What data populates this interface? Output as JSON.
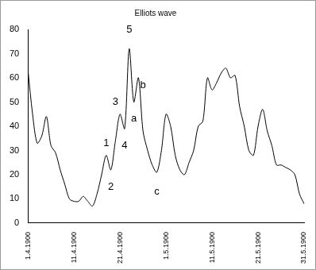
{
  "chart_data": {
    "type": "line",
    "title": "Elliots wave",
    "categories": [
      "1.4.1900",
      null,
      null,
      null,
      null,
      null,
      null,
      null,
      null,
      null,
      "11.4.1900",
      null,
      null,
      null,
      null,
      null,
      null,
      null,
      null,
      null,
      "21.4.1900",
      null,
      null,
      null,
      null,
      null,
      null,
      null,
      null,
      null,
      "1.5.1900",
      null,
      null,
      null,
      null,
      null,
      null,
      null,
      null,
      null,
      "11.5.1900",
      null,
      null,
      null,
      null,
      null,
      null,
      null,
      null,
      null,
      "21.5.1900",
      null,
      null,
      null,
      null,
      null,
      null,
      null,
      null,
      null,
      "31.5.1900"
    ],
    "values": [
      63,
      45,
      33,
      36,
      44,
      32,
      29,
      22,
      16,
      10,
      9,
      9,
      11,
      9,
      7,
      12,
      20,
      28,
      22,
      34,
      45,
      39,
      72,
      50,
      60,
      38,
      30,
      24,
      21,
      30,
      45,
      40,
      28,
      22,
      20,
      25,
      30,
      40,
      42,
      60,
      55,
      58,
      62,
      64,
      60,
      61,
      48,
      40,
      30,
      28,
      40,
      47,
      38,
      32,
      24,
      24,
      23,
      22,
      20,
      12,
      8
    ],
    "color": "#000000",
    "ylim": [
      0,
      80
    ],
    "yticks": [
      0,
      10,
      20,
      30,
      40,
      50,
      60,
      70,
      80
    ],
    "grid": false,
    "annotations": [
      {
        "text": "1",
        "x": 17,
        "y": 33
      },
      {
        "text": "2",
        "x": 18,
        "y": 15
      },
      {
        "text": "3",
        "x": 19,
        "y": 50
      },
      {
        "text": "4",
        "x": 21,
        "y": 32
      },
      {
        "text": "5",
        "x": 22,
        "y": 80
      },
      {
        "text": "a",
        "x": 23,
        "y": 43
      },
      {
        "text": "b",
        "x": 25,
        "y": 57
      },
      {
        "text": "c",
        "x": 28,
        "y": 13
      }
    ]
  }
}
